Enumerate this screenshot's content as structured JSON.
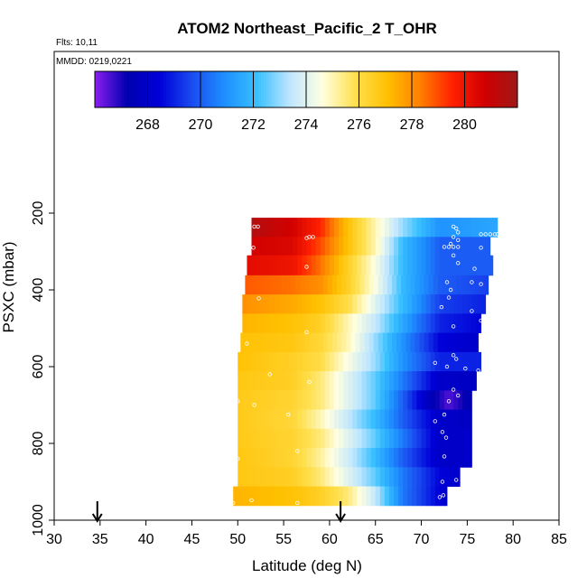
{
  "chart_data": {
    "type": "heatmap",
    "title": "ATOM2 Northeast_Pacific_2 T_OHR",
    "flights_label": "Flts: 10,11",
    "date_label": "MMDD: 0219,0221",
    "xlabel": "Latitude (deg N)",
    "ylabel": "PSXC (mbar)",
    "xlim": [
      30,
      85
    ],
    "ylim": [
      1000,
      0
    ],
    "x_ticks": [
      30,
      35,
      40,
      45,
      50,
      55,
      60,
      65,
      70,
      75,
      80,
      85
    ],
    "y_ticks": [
      200,
      400,
      600,
      800,
      1000
    ],
    "colorbar": {
      "range": [
        266,
        282
      ],
      "ticks": [
        268,
        270,
        272,
        274,
        276,
        278,
        280
      ],
      "colors": [
        "#8b1ef0",
        "#0000b0",
        "#0000d8",
        "#1a4cf0",
        "#1e90ff",
        "#38c0ff",
        "#bfe6ff",
        "#ffffe0",
        "#ffe050",
        "#ffc000",
        "#ff8000",
        "#ff2000",
        "#d00000",
        "#a01818"
      ]
    },
    "arrows_latitude": [
      34.7,
      61.2
    ],
    "bands": [
      {
        "p_top": 212,
        "p_bot": 262,
        "lat_min": 51.5,
        "lat_max": 78.3,
        "stops": [
          [
            51.5,
            281.5
          ],
          [
            56,
            280.7
          ],
          [
            59,
            279.5
          ],
          [
            62,
            277
          ],
          [
            65,
            275
          ],
          [
            68,
            273
          ],
          [
            72,
            271
          ],
          [
            78.3,
            271.5
          ]
        ]
      },
      {
        "p_top": 262,
        "p_bot": 310,
        "lat_min": 51.5,
        "lat_max": 77.5,
        "stops": [
          [
            51.5,
            280.7
          ],
          [
            56,
            280.5
          ],
          [
            59,
            279
          ],
          [
            62,
            277
          ],
          [
            65,
            275
          ],
          [
            68,
            272
          ],
          [
            72,
            270
          ],
          [
            77.5,
            270
          ]
        ]
      },
      {
        "p_top": 310,
        "p_bot": 362,
        "lat_min": 51.0,
        "lat_max": 77.8,
        "stops": [
          [
            51,
            280.3
          ],
          [
            56,
            280
          ],
          [
            59,
            278.5
          ],
          [
            62,
            276.5
          ],
          [
            65,
            274.5
          ],
          [
            68,
            272
          ],
          [
            72,
            270
          ],
          [
            77.8,
            270
          ]
        ]
      },
      {
        "p_top": 362,
        "p_bot": 412,
        "lat_min": 50.8,
        "lat_max": 77.3,
        "stops": [
          [
            50.8,
            278.8
          ],
          [
            56,
            278.5
          ],
          [
            59,
            278
          ],
          [
            62,
            276.5
          ],
          [
            65,
            274.5
          ],
          [
            68,
            272
          ],
          [
            72,
            270
          ],
          [
            77.3,
            269.5
          ]
        ]
      },
      {
        "p_top": 412,
        "p_bot": 462,
        "lat_min": 50.5,
        "lat_max": 77.0,
        "stops": [
          [
            50.5,
            278
          ],
          [
            56,
            277.5
          ],
          [
            59,
            277
          ],
          [
            62,
            276
          ],
          [
            65,
            274
          ],
          [
            68,
            272
          ],
          [
            72,
            269.5
          ],
          [
            77,
            269
          ]
        ]
      },
      {
        "p_top": 462,
        "p_bot": 512,
        "lat_min": 50.5,
        "lat_max": 76.5,
        "stops": [
          [
            50.5,
            277.3
          ],
          [
            56,
            277
          ],
          [
            59,
            276.5
          ],
          [
            62,
            275
          ],
          [
            65,
            273.5
          ],
          [
            68,
            271.5
          ],
          [
            72,
            269
          ],
          [
            76.5,
            268.5
          ]
        ]
      },
      {
        "p_top": 512,
        "p_bot": 562,
        "lat_min": 50.3,
        "lat_max": 76.2,
        "stops": [
          [
            50.3,
            277
          ],
          [
            56,
            276.8
          ],
          [
            59,
            276.2
          ],
          [
            62,
            275
          ],
          [
            65,
            273
          ],
          [
            68,
            271
          ],
          [
            72,
            268.5
          ],
          [
            76.2,
            268
          ]
        ]
      },
      {
        "p_top": 562,
        "p_bot": 612,
        "lat_min": 50.0,
        "lat_max": 76.5,
        "stops": [
          [
            50,
            277
          ],
          [
            56,
            276.5
          ],
          [
            59,
            276
          ],
          [
            62,
            274.5
          ],
          [
            65,
            273
          ],
          [
            68,
            271
          ],
          [
            72,
            269
          ],
          [
            76.5,
            269
          ]
        ]
      },
      {
        "p_top": 612,
        "p_bot": 662,
        "lat_min": 50.0,
        "lat_max": 76.0,
        "stops": [
          [
            50,
            276.8
          ],
          [
            56,
            276.5
          ],
          [
            59,
            275.5
          ],
          [
            62,
            274
          ],
          [
            65,
            272.5
          ],
          [
            68,
            270.5
          ],
          [
            72,
            268
          ],
          [
            76,
            267.8
          ]
        ]
      },
      {
        "p_top": 662,
        "p_bot": 712,
        "lat_min": 50.0,
        "lat_max": 75.5,
        "stops": [
          [
            50,
            276.7
          ],
          [
            56,
            276.3
          ],
          [
            59,
            275.5
          ],
          [
            62,
            274
          ],
          [
            65,
            272.5
          ],
          [
            68,
            270
          ],
          [
            71,
            267.5
          ],
          [
            73,
            266.5
          ],
          [
            75.5,
            267.5
          ]
        ]
      },
      {
        "p_top": 712,
        "p_bot": 762,
        "lat_min": 50.0,
        "lat_max": 75.5,
        "stops": [
          [
            50,
            276.7
          ],
          [
            56,
            276.2
          ],
          [
            59,
            275
          ],
          [
            62,
            273.5
          ],
          [
            65,
            272
          ],
          [
            68,
            270
          ],
          [
            72,
            268
          ],
          [
            75.5,
            267.8
          ]
        ]
      },
      {
        "p_top": 762,
        "p_bot": 812,
        "lat_min": 50.0,
        "lat_max": 75.5,
        "stops": [
          [
            50,
            276.7
          ],
          [
            56,
            276.3
          ],
          [
            59,
            275.5
          ],
          [
            62,
            274
          ],
          [
            65,
            272.5
          ],
          [
            68,
            270.5
          ],
          [
            72,
            268
          ],
          [
            75.5,
            268
          ]
        ]
      },
      {
        "p_top": 812,
        "p_bot": 862,
        "lat_min": 50.0,
        "lat_max": 75.5,
        "stops": [
          [
            50,
            276.8
          ],
          [
            56,
            276.3
          ],
          [
            59,
            275.2
          ],
          [
            62,
            273.7
          ],
          [
            65,
            272
          ],
          [
            68,
            270
          ],
          [
            72,
            268
          ],
          [
            75.5,
            268
          ]
        ]
      },
      {
        "p_top": 862,
        "p_bot": 912,
        "lat_min": 50.0,
        "lat_max": 74.2,
        "stops": [
          [
            50,
            276.8
          ],
          [
            56,
            276.5
          ],
          [
            59,
            275.5
          ],
          [
            62,
            274
          ],
          [
            65,
            272.5
          ],
          [
            68,
            270.5
          ],
          [
            72,
            268.5
          ],
          [
            74.2,
            268
          ]
        ]
      },
      {
        "p_top": 912,
        "p_bot": 962,
        "lat_min": 49.5,
        "lat_max": 72.8,
        "stops": [
          [
            49.5,
            277.3
          ],
          [
            56,
            277
          ],
          [
            59,
            276.5
          ],
          [
            62,
            275.5
          ],
          [
            65,
            273.5
          ],
          [
            68,
            270.5
          ],
          [
            72.8,
            268
          ]
        ]
      }
    ],
    "points": [
      [
        51.8,
        235
      ],
      [
        52.2,
        235
      ],
      [
        57.5,
        265
      ],
      [
        57.8,
        262
      ],
      [
        58.2,
        262
      ],
      [
        73.5,
        235
      ],
      [
        73.8,
        240
      ],
      [
        74,
        250
      ],
      [
        76.5,
        255
      ],
      [
        77.0,
        255
      ],
      [
        77.5,
        255
      ],
      [
        78.0,
        255
      ],
      [
        78.3,
        255
      ],
      [
        73.5,
        262
      ],
      [
        74,
        270
      ],
      [
        73.2,
        280
      ],
      [
        72.5,
        288
      ],
      [
        73.0,
        288
      ],
      [
        73.5,
        288
      ],
      [
        74.0,
        288
      ],
      [
        76.5,
        290
      ],
      [
        51.7,
        290
      ],
      [
        57.5,
        340
      ],
      [
        73.5,
        310
      ],
      [
        74.0,
        330
      ],
      [
        75.8,
        345
      ],
      [
        75.5,
        380
      ],
      [
        76.5,
        385
      ],
      [
        72.8,
        380
      ],
      [
        73.2,
        400
      ],
      [
        73.0,
        420
      ],
      [
        52.3,
        422
      ],
      [
        72.2,
        445
      ],
      [
        75.5,
        455
      ],
      [
        76.5,
        480
      ],
      [
        73.5,
        495
      ],
      [
        51,
        540
      ],
      [
        57.5,
        510
      ],
      [
        73.5,
        570
      ],
      [
        73.8,
        580
      ],
      [
        71.5,
        590
      ],
      [
        72.8,
        600
      ],
      [
        74.8,
        605
      ],
      [
        76.2,
        610
      ],
      [
        53.5,
        620
      ],
      [
        57.8,
        640
      ],
      [
        73.5,
        660
      ],
      [
        74.0,
        675
      ],
      [
        73.0,
        690
      ],
      [
        50.0,
        690
      ],
      [
        51.8,
        700
      ],
      [
        55.5,
        725
      ],
      [
        72.5,
        725
      ],
      [
        71.5,
        742
      ],
      [
        72.3,
        770
      ],
      [
        72.7,
        785
      ],
      [
        75.8,
        798
      ],
      [
        56.5,
        820
      ],
      [
        72.5,
        834
      ],
      [
        50,
        840
      ],
      [
        72.3,
        900
      ],
      [
        73.8,
        895
      ],
      [
        72.0,
        940
      ],
      [
        72.4,
        935
      ],
      [
        51.5,
        948
      ],
      [
        49.5,
        955
      ],
      [
        56.5,
        955
      ]
    ]
  }
}
